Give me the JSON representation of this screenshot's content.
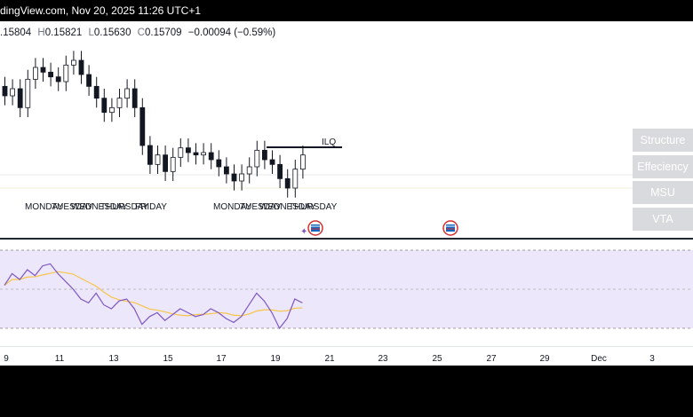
{
  "header": {
    "title": "dingView.com, Nov 20, 2025 11:26 UTC+1"
  },
  "ohlc": {
    "open": ".15804",
    "high_prefix": "H",
    "high": "0.15821",
    "low_prefix": "L",
    "low": "0.15630",
    "close_prefix": "C",
    "close": "0.15709",
    "change": "−0.00094 (−0.59%)"
  },
  "annotations": {
    "ilq": "ILQ"
  },
  "indicator_buttons": [
    {
      "label": "Structure"
    },
    {
      "label": "Effeciency"
    },
    {
      "label": "MSU"
    },
    {
      "label": "VTA"
    }
  ],
  "day_labels_week1": [
    "MONDAY",
    "TUESDAY",
    "WEDNESDAY",
    "THURSDAY",
    "FRIDAY"
  ],
  "day_labels_week2": [
    "MONDAY",
    "TUESDAY",
    "WEDNESDAY",
    "THURSDAY"
  ],
  "time_axis": [
    "9",
    "11",
    "13",
    "15",
    "17",
    "19",
    "21",
    "23",
    "25",
    "27",
    "29",
    "Dec",
    "3"
  ],
  "colors": {
    "candle": "#131722",
    "rsi_line": "#7e57c2",
    "rsi_ma": "#f7c548",
    "rsi_band": "#ede7fb",
    "button_bg": "#d9dadd"
  },
  "chart_data": {
    "type": "candlestick",
    "candles_close": [
      0.1591,
      0.1594,
      0.1586,
      0.1598,
      0.1603,
      0.1601,
      0.1599,
      0.1597,
      0.1604,
      0.1606,
      0.16,
      0.1595,
      0.159,
      0.1584,
      0.1586,
      0.159,
      0.1594,
      0.1586,
      0.157,
      0.1562,
      0.1566,
      0.1559,
      0.1565,
      0.1569,
      0.1567,
      0.1566,
      0.1567,
      0.1564,
      0.1561,
      0.1558,
      0.1555,
      0.1558,
      0.1561,
      0.1568,
      0.1564,
      0.1562,
      0.1556,
      0.1552,
      0.156,
      0.1566
    ],
    "rsi_values": [
      52,
      58,
      55,
      60,
      57,
      62,
      63,
      58,
      54,
      50,
      45,
      43,
      48,
      42,
      40,
      44,
      45,
      40,
      32,
      36,
      38,
      34,
      37,
      40,
      38,
      36,
      37,
      40,
      38,
      35,
      33,
      36,
      42,
      48,
      44,
      38,
      30,
      35,
      45,
      43
    ]
  }
}
